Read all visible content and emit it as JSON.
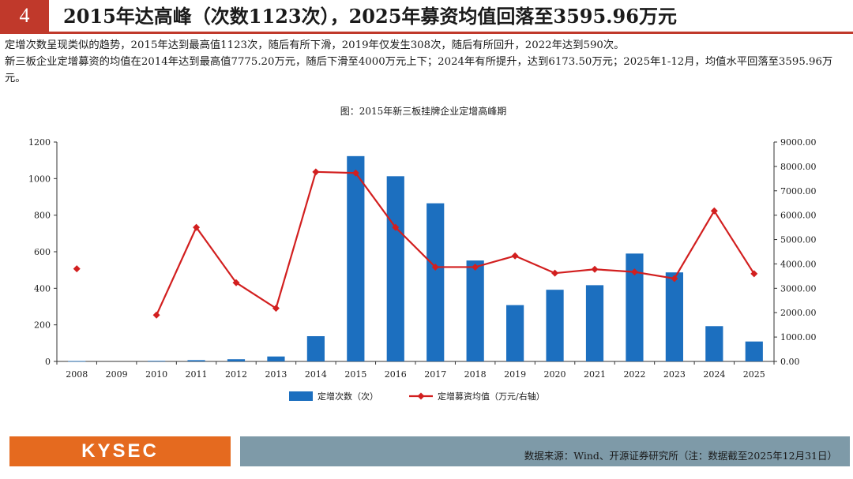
{
  "header": {
    "number": "4",
    "title": "2015年达高峰（次数1123次），2025年募资均值回落至3595.96万元"
  },
  "body": {
    "para1": "定增次数呈现类似的趋势，2015年达到最高值1123次，随后有所下滑，2019年仅发生308次，随后有所回升，2022年达到590次。",
    "para2": "新三板企业定增募资的均值在2014年达到最高值7775.20万元，随后下滑至4000万元上下；2024年有所提升，达到6173.50万元；2025年1-12月，均值水平回落至3595.96万元。"
  },
  "chart_data": {
    "type": "bar",
    "title": "图：2015年新三板挂牌企业定增高峰期",
    "categories": [
      "2008",
      "2009",
      "2010",
      "2011",
      "2012",
      "2013",
      "2014",
      "2015",
      "2016",
      "2017",
      "2018",
      "2019",
      "2020",
      "2021",
      "2022",
      "2023",
      "2024",
      "2025"
    ],
    "series": [
      {
        "name": "定增次数（次）",
        "type": "bar",
        "axis": "left",
        "color": "#1c6fbf",
        "values": [
          2,
          0,
          3,
          7,
          12,
          27,
          138,
          1123,
          1013,
          865,
          552,
          308,
          392,
          417,
          590,
          487,
          193,
          109
        ]
      },
      {
        "name": "定增募资均值（万元/右轴）",
        "type": "line",
        "axis": "right",
        "color": "#d21f1f",
        "values": [
          3800,
          null,
          1900,
          5500,
          3230,
          2180,
          7775.2,
          7730,
          5500,
          3870,
          3870,
          4330,
          3620,
          3780,
          3670,
          3400,
          6173.5,
          3595.96
        ]
      }
    ],
    "y_left": {
      "min": 0,
      "max": 1200,
      "ticks": [
        "0",
        "200",
        "400",
        "600",
        "800",
        "1000",
        "1200"
      ]
    },
    "y_right": {
      "min": 0,
      "max": 9000,
      "ticks": [
        "0.00",
        "1000.00",
        "2000.00",
        "3000.00",
        "4000.00",
        "5000.00",
        "6000.00",
        "7000.00",
        "8000.00",
        "9000.00"
      ]
    },
    "grid": false,
    "legend": "bottom"
  },
  "footer": {
    "logo": "KYSEC",
    "source": "数据来源：Wind、开源证券研究所（注：数据截至2025年12月31日）"
  },
  "colors": {
    "accent": "#c0392b",
    "logo_bg": "#e56a1f",
    "footer_bg": "#7e9aa8"
  }
}
